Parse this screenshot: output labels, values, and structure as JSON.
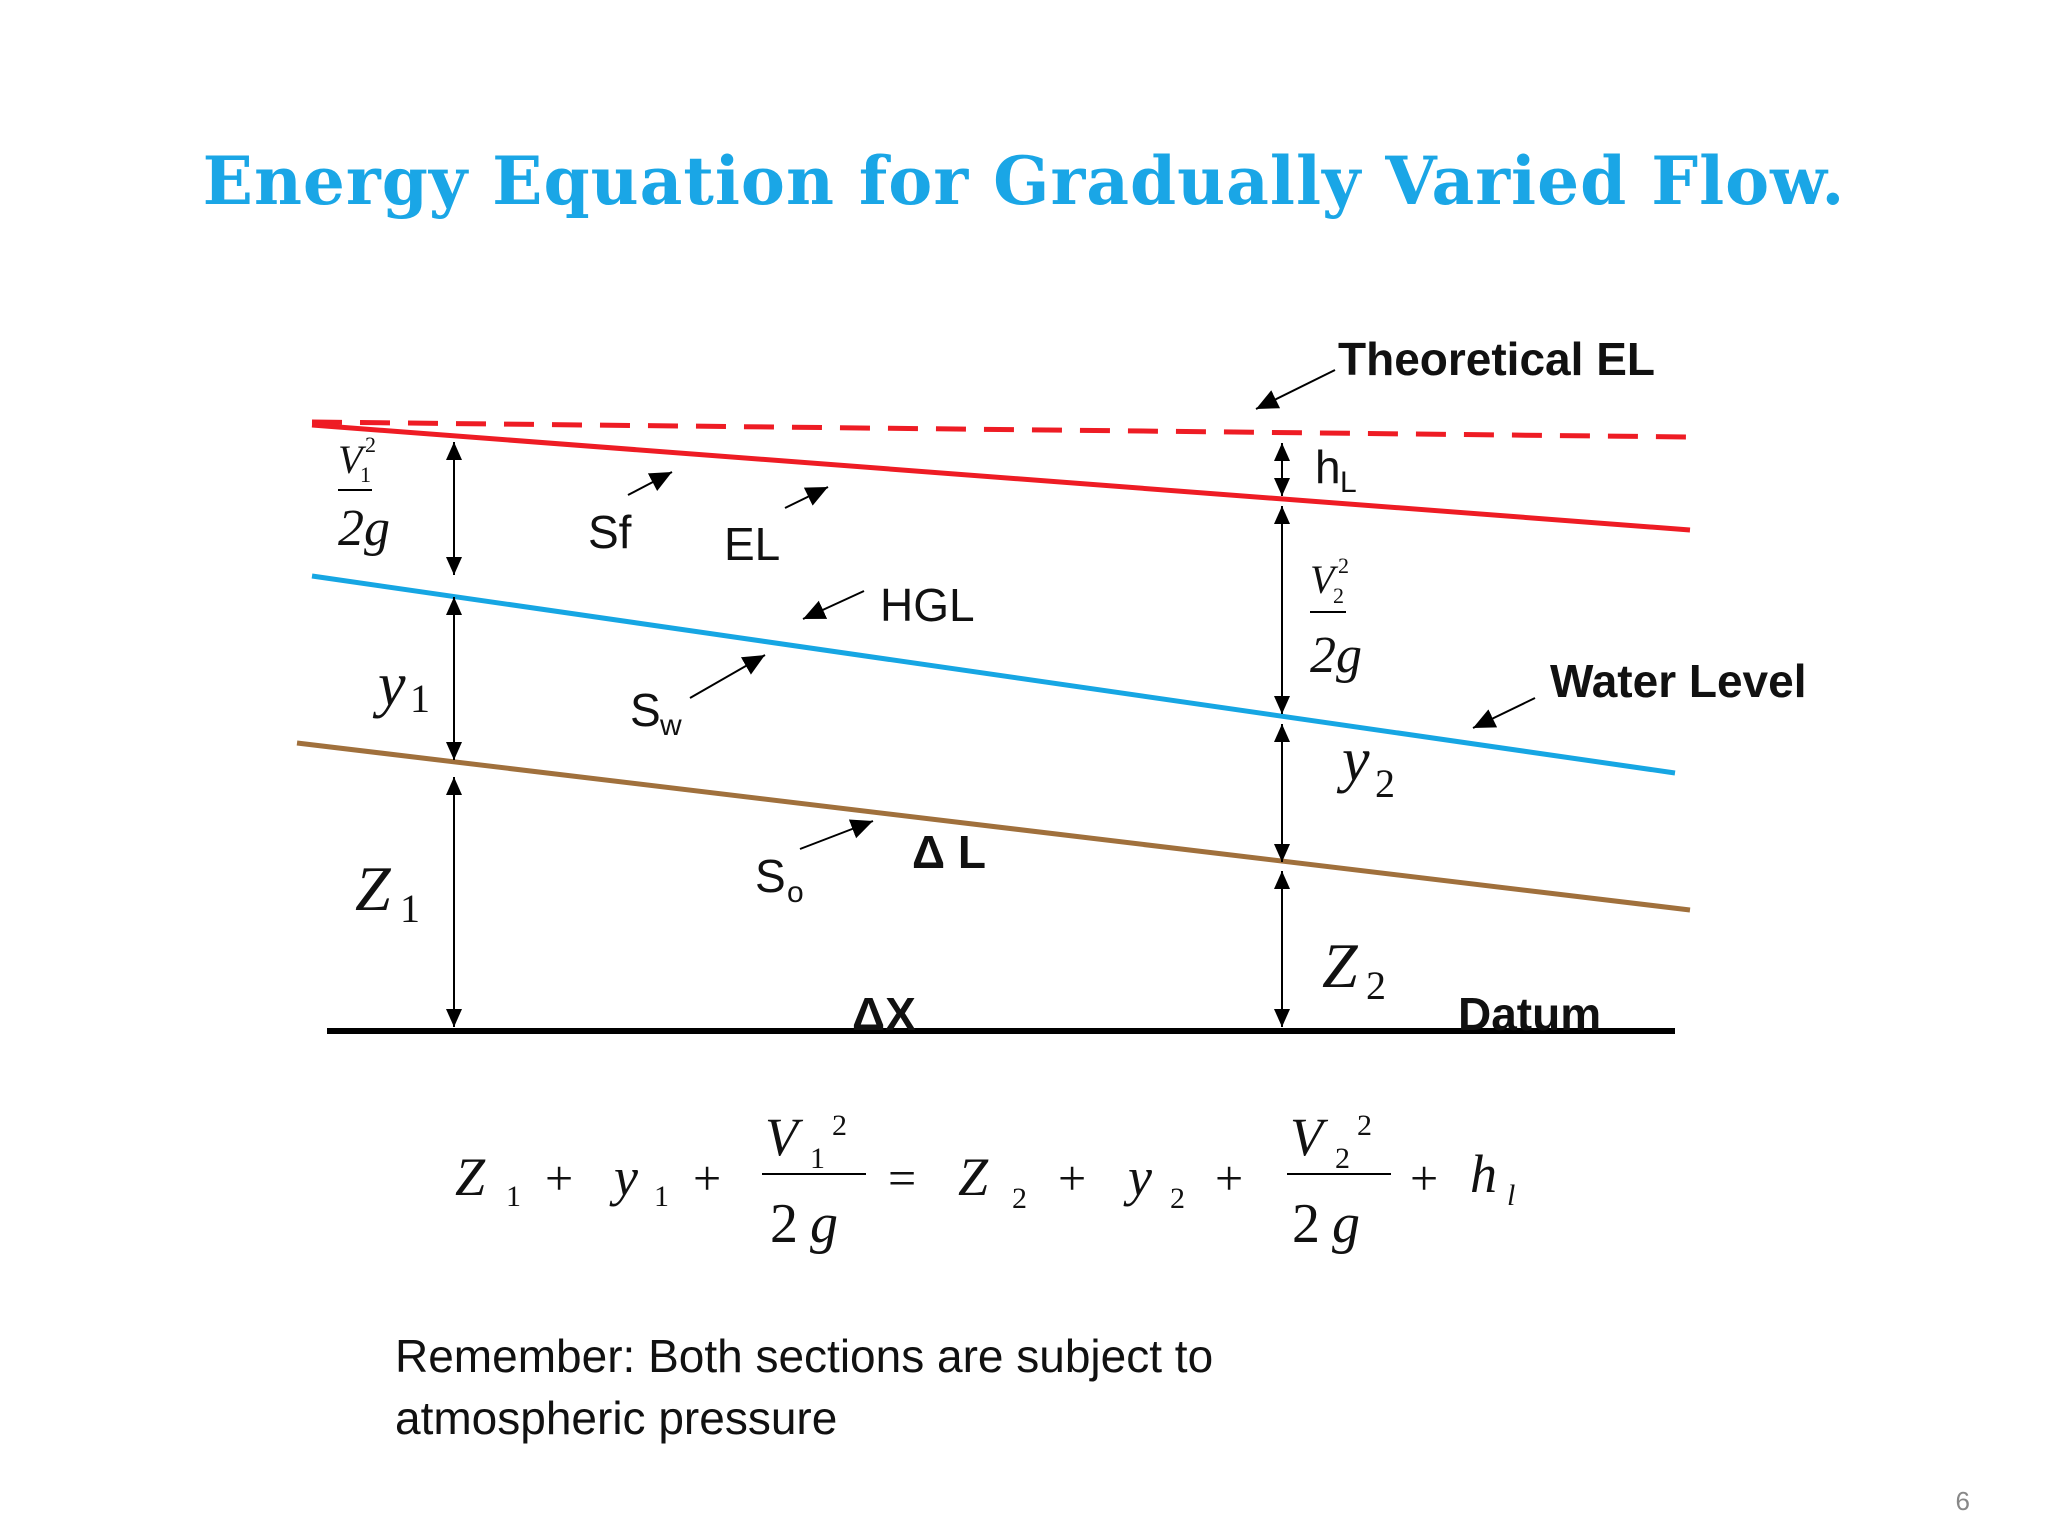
{
  "slide": {
    "title": "Energy Equation for Gradually Varied Flow.",
    "page_number": "6"
  },
  "diagram": {
    "labels": {
      "theoretical_el": "Theoretical EL",
      "h_L_main": "h",
      "h_L_sub": "L",
      "sf": "Sf",
      "el": "EL",
      "hgl": "HGL",
      "s_w_main": "S",
      "s_w_sub": "w",
      "s_o_main": "S",
      "s_o_sub": "o",
      "water_level": "Water Level",
      "delta_l": "Δ L",
      "delta_x": "ΔX",
      "datum": "Datum"
    },
    "section1": {
      "V": "V",
      "V_sub": "1",
      "V_sup": "2",
      "two_g": "2g",
      "y": "y",
      "y_sub": "1",
      "Z": "Z",
      "Z_sub": "1"
    },
    "section2": {
      "V": "V",
      "V_sub": "2",
      "V_sup": "2",
      "two_g": "2g",
      "y": "y",
      "y_sub": "2",
      "Z": "Z",
      "Z_sub": "2"
    },
    "colors": {
      "energy_line": "#ee1c24",
      "hgl": "#16a6e3",
      "channel_bed": "#a0703c",
      "datum": "#000000",
      "title": "#1aa6e6"
    }
  },
  "equation": {
    "Z1": "Z",
    "Z1_sub": "1",
    "plus1": "+",
    "y1": "y",
    "y1_sub": "1",
    "plus2": "+",
    "V1": "V",
    "V1_sub": "1",
    "V1_sup": "2",
    "den1_2": "2",
    "den1_g": "g",
    "equals": "=",
    "Z2": "Z",
    "Z2_sub": "2",
    "plus3": "+",
    "y2": "y",
    "y2_sub": "2",
    "plus4": "+",
    "V2": "V",
    "V2_sub": "2",
    "V2_sup": "2",
    "den2_2": "2",
    "den2_g": "g",
    "plus5": "+",
    "h": "h",
    "h_sub": "l"
  },
  "note": {
    "line1": "Remember:  Both sections are subject to",
    "line2": "atmospheric pressure"
  }
}
